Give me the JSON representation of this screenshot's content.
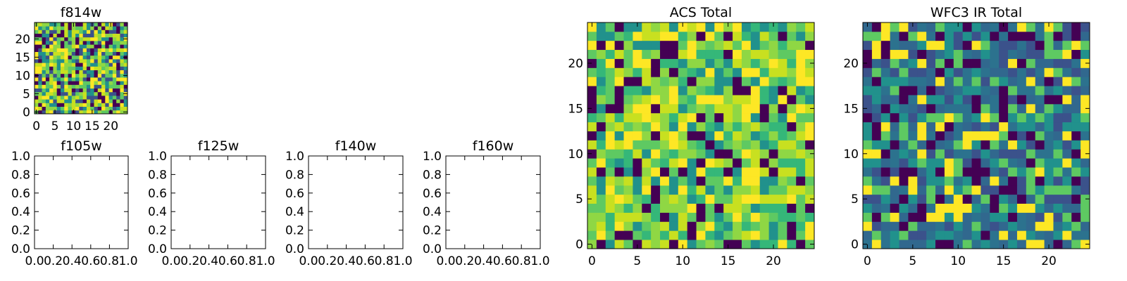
{
  "chart_data": [
    {
      "type": "heatmap",
      "title": "f814w",
      "xlabel": "",
      "ylabel": "",
      "grid_size": [
        25,
        25
      ],
      "xlim": [
        -0.5,
        24.5
      ],
      "ylim": [
        -0.5,
        24.5
      ],
      "x_ticks": [
        "0",
        "5",
        "10",
        "15",
        "20"
      ],
      "y_ticks": [
        "0",
        "5",
        "10",
        "15",
        "20"
      ],
      "origin": "lower",
      "colormap": "viridis",
      "palette": [
        "#440154",
        "#3b528b",
        "#21918c",
        "#5ec962",
        "#8fd744",
        "#c8e020",
        "#fde725"
      ],
      "seed": 814
    },
    {
      "type": "empty",
      "title": "f105w",
      "xlabel": "",
      "ylabel": "",
      "xlim": [
        0,
        1
      ],
      "ylim": [
        0,
        1
      ],
      "x_ticks": [
        "0.0",
        "0.2",
        "0.4",
        "0.6",
        "0.8",
        "1.0"
      ],
      "y_ticks": [
        "0.0",
        "0.2",
        "0.4",
        "0.6",
        "0.8",
        "1.0"
      ]
    },
    {
      "type": "empty",
      "title": "f125w",
      "xlabel": "",
      "ylabel": "",
      "xlim": [
        0,
        1
      ],
      "ylim": [
        0,
        1
      ],
      "x_ticks": [
        "0.0",
        "0.2",
        "0.4",
        "0.6",
        "0.8",
        "1.0"
      ],
      "y_ticks": [
        "0.0",
        "0.2",
        "0.4",
        "0.6",
        "0.8",
        "1.0"
      ]
    },
    {
      "type": "empty",
      "title": "f140w",
      "xlabel": "",
      "ylabel": "",
      "xlim": [
        0,
        1
      ],
      "ylim": [
        0,
        1
      ],
      "x_ticks": [
        "0.0",
        "0.2",
        "0.4",
        "0.6",
        "0.8",
        "1.0"
      ],
      "y_ticks": [
        "0.0",
        "0.2",
        "0.4",
        "0.6",
        "0.8",
        "1.0"
      ]
    },
    {
      "type": "empty",
      "title": "f160w",
      "xlabel": "",
      "ylabel": "",
      "xlim": [
        0,
        1
      ],
      "ylim": [
        0,
        1
      ],
      "x_ticks": [
        "0.0",
        "0.2",
        "0.4",
        "0.6",
        "0.8",
        "1.0"
      ],
      "y_ticks": [
        "0.0",
        "0.2",
        "0.4",
        "0.6",
        "0.8",
        "1.0"
      ]
    },
    {
      "type": "heatmap",
      "title": "ACS Total",
      "xlabel": "",
      "ylabel": "",
      "grid_size": [
        25,
        25
      ],
      "xlim": [
        -0.5,
        24.5
      ],
      "ylim": [
        -0.5,
        24.5
      ],
      "x_ticks": [
        "0",
        "5",
        "10",
        "15",
        "20"
      ],
      "y_ticks": [
        "0",
        "5",
        "10",
        "15",
        "20"
      ],
      "origin": "lower",
      "colormap": "viridis",
      "palette": [
        "#440154",
        "#21918c",
        "#35b779",
        "#5ec962",
        "#8fd744",
        "#c8e020",
        "#fde725"
      ],
      "seed": 1001
    },
    {
      "type": "heatmap",
      "title": "WFC3 IR Total",
      "xlabel": "",
      "ylabel": "",
      "grid_size": [
        25,
        25
      ],
      "xlim": [
        -0.5,
        24.5
      ],
      "ylim": [
        -0.5,
        24.5
      ],
      "x_ticks": [
        "0",
        "5",
        "10",
        "15",
        "20"
      ],
      "y_ticks": [
        "0",
        "5",
        "10",
        "15",
        "20"
      ],
      "origin": "lower",
      "colormap": "viridis",
      "palette": [
        "#440154",
        "#3b528b",
        "#31688e",
        "#2c728e",
        "#21918c",
        "#5ec962",
        "#fde725"
      ],
      "seed": 3160
    }
  ]
}
